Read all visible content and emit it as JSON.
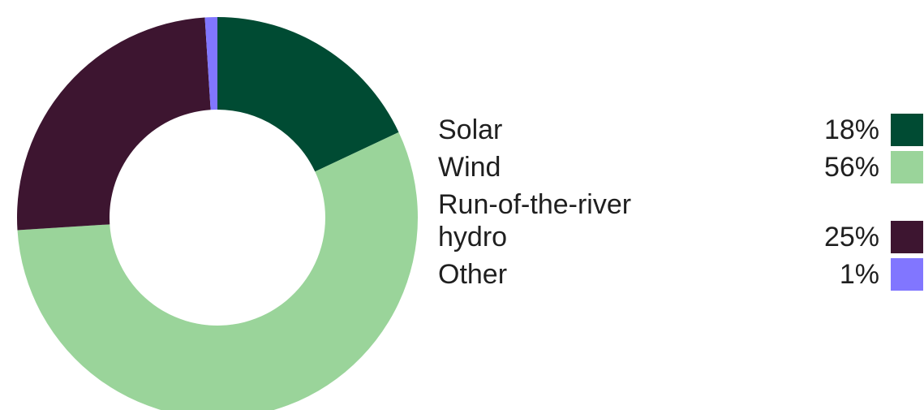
{
  "chart_data": {
    "type": "pie",
    "donut": true,
    "legend_position": "right",
    "title": "",
    "categories": [
      "Solar",
      "Wind",
      "Run-of-the-river hydro",
      "Other"
    ],
    "values": [
      18,
      56,
      25,
      1
    ],
    "value_labels": [
      "18%",
      "56%",
      "25%",
      "1%"
    ],
    "colors": [
      "#004b33",
      "#9ad49a",
      "#3d1530",
      "#8176ff"
    ]
  }
}
